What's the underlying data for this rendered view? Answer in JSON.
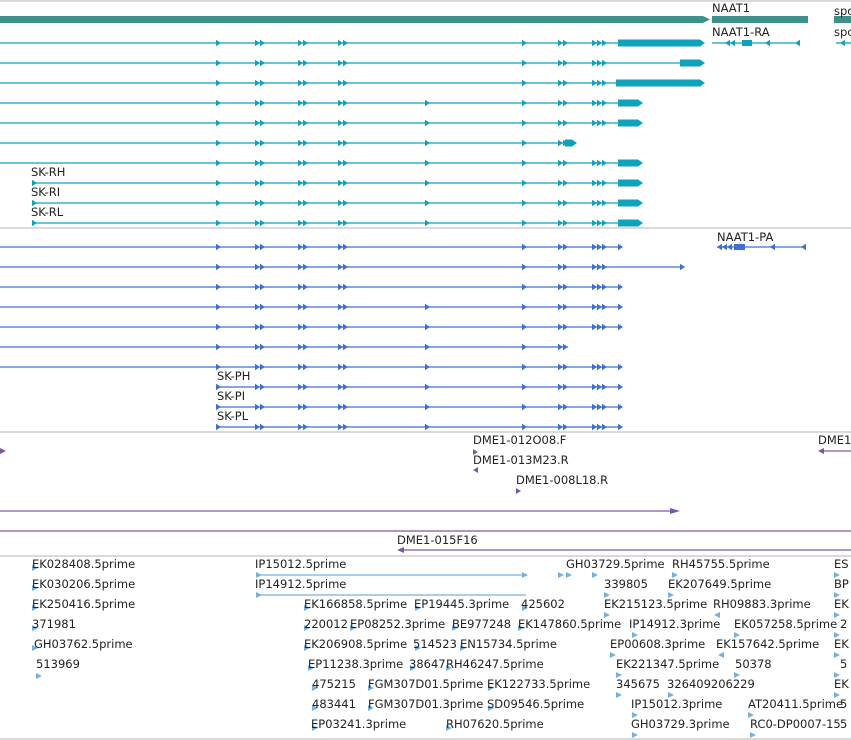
{
  "colors": {
    "gene": "#3f8f8b",
    "flybase_transcript": "#0fa2bd",
    "ensembl_transcript": "#3f6fd0",
    "clone": "#7a5aa8",
    "est": "#7ab0dc",
    "divider": "#b4b4b4"
  },
  "tracks": {
    "genes": {
      "labels": [
        "NAAT1",
        "spc"
      ]
    },
    "flybase_transcripts": {
      "labels": [
        "NAAT1-RA",
        "spc",
        "SK-RH",
        "SK-RI",
        "SK-RL"
      ]
    },
    "ensembl_transcripts": {
      "labels": [
        "NAAT1-PA",
        "SK-PH",
        "SK-PI",
        "SK-PL"
      ]
    },
    "clones": {
      "labels": [
        "DME1-012O08.F",
        "DME1-013M23.R",
        "DME1-008L18.R",
        "DME1",
        "DME1-015F16"
      ]
    },
    "ests": {
      "labels": [
        "EK028408.5prime",
        "EK030206.5prime",
        "EK250416.5prime",
        "371981",
        "GH03762.5prime",
        "513969",
        "IP15012.5prime",
        "IP14912.5prime",
        "EK166858.5prime",
        "EP19445.3prime",
        "425602",
        "220012",
        "EP08252.3prime",
        "BE977248",
        "EK147860.5prime",
        "EK206908.5prime",
        "514523",
        "EN15734.5prime",
        "EP11238.3prime",
        "38647",
        "RH46247.5prime",
        "475215",
        "FGM307D01.5prime",
        "EK122733.5prime",
        "483441",
        "FGM307D01.3prime",
        "SD09546.5prime",
        "EP03241.3prime",
        "RH07620.5prime",
        "GH03729.5prime",
        "RH45755.5prime",
        "339805",
        "EK207649.5prime",
        "EK215123.5prime",
        "RH09883.3prime",
        "IP14912.3prime",
        "EK057258.5prime",
        "EP00608.3prime",
        "EK157642.5prime",
        "EK221347.5prime",
        "50378",
        "345675",
        "326409206229",
        "IP15012.3prime",
        "AT20411.5prime",
        "GH03729.3prime",
        "RC0-DP0007-15",
        "ES",
        "BP",
        "EK",
        "2",
        "EK",
        "5",
        "EK",
        "5",
        "5"
      ]
    }
  }
}
